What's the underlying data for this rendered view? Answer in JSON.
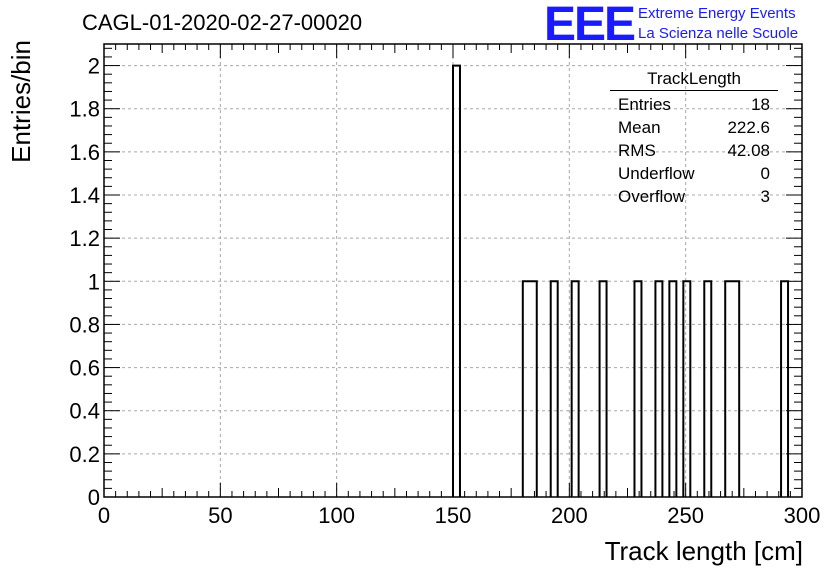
{
  "title": "CAGL-01-2020-02-27-00020",
  "logo": {
    "mark": "EEE",
    "line1": "Extreme Energy Events",
    "line2": "La Scienza nelle Scuole",
    "color": "#1a1aff"
  },
  "stats_box": {
    "name": "TrackLength",
    "rows": [
      {
        "label": "Entries",
        "value": "18"
      },
      {
        "label": "Mean",
        "value": "222.6"
      },
      {
        "label": "RMS",
        "value": "42.08"
      },
      {
        "label": "Underflow",
        "value": "0"
      },
      {
        "label": "Overflow",
        "value": "3"
      }
    ]
  },
  "chart_data": {
    "type": "bar",
    "xlabel": "Track length [cm]",
    "ylabel": "Entries/bin",
    "xlim": [
      0,
      300
    ],
    "ylim": [
      0,
      2.1
    ],
    "grid": true,
    "x_ticks": [
      0,
      50,
      100,
      150,
      200,
      250,
      300
    ],
    "y_ticks": [
      0,
      0.2,
      0.4,
      0.6,
      0.8,
      1,
      1.2,
      1.4,
      1.6,
      1.8,
      2
    ],
    "y_tick_labels": [
      "0",
      "0.2",
      "0.4",
      "0.6",
      "0.8",
      "1",
      "1.2",
      "1.4",
      "1.6",
      "1.8",
      "2"
    ],
    "bin_width": 3,
    "bins": [
      {
        "x_low": 150,
        "x_high": 153,
        "value": 2
      },
      {
        "x_low": 180,
        "x_high": 186,
        "value": 1
      },
      {
        "x_low": 192,
        "x_high": 195,
        "value": 1
      },
      {
        "x_low": 201,
        "x_high": 204,
        "value": 1
      },
      {
        "x_low": 213,
        "x_high": 216,
        "value": 1
      },
      {
        "x_low": 228,
        "x_high": 231,
        "value": 1
      },
      {
        "x_low": 237,
        "x_high": 240,
        "value": 1
      },
      {
        "x_low": 243,
        "x_high": 246,
        "value": 1
      },
      {
        "x_low": 249,
        "x_high": 252,
        "value": 1
      },
      {
        "x_low": 258,
        "x_high": 261,
        "value": 1
      },
      {
        "x_low": 267,
        "x_high": 273,
        "value": 1
      },
      {
        "x_low": 291,
        "x_high": 294,
        "value": 1
      }
    ]
  }
}
